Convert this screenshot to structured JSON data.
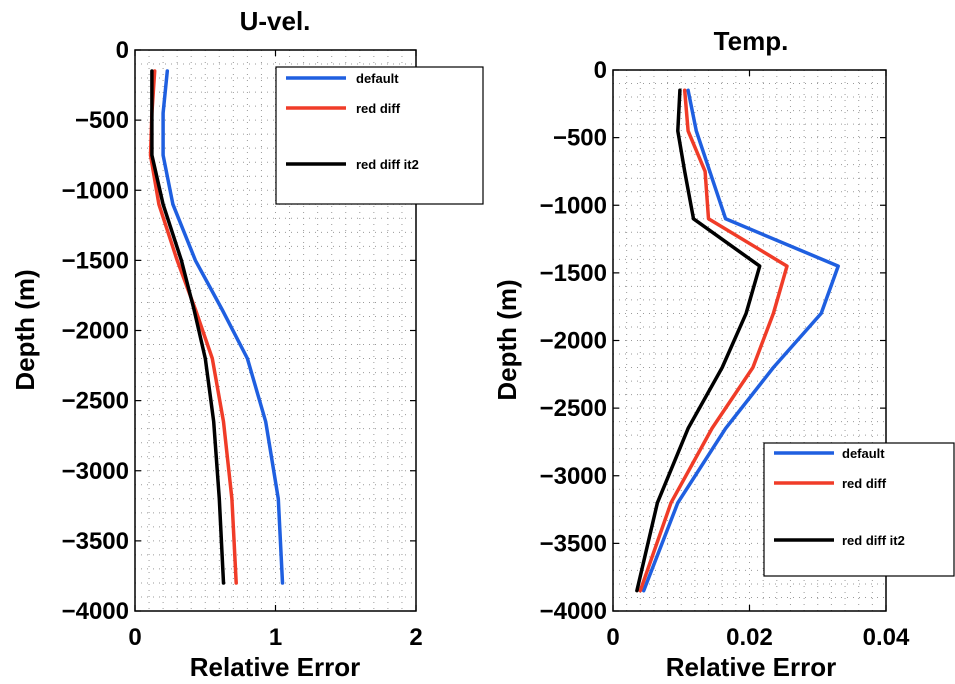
{
  "chart_data": [
    {
      "type": "line",
      "title": "U-vel.",
      "xlabel": "Relative Error",
      "ylabel": "Depth (m)",
      "xlim": [
        0,
        2
      ],
      "ylim": [
        -4000,
        0
      ],
      "xticks": [
        0,
        1,
        2
      ],
      "xtick_labels": [
        "0",
        "1",
        "2"
      ],
      "yticks": [
        0,
        -500,
        -1000,
        -1500,
        -2000,
        -2500,
        -3000,
        -3500,
        -4000
      ],
      "ytick_labels": [
        "0",
        "−500",
        "−1000",
        "−1500",
        "−2000",
        "−2500",
        "−3000",
        "−3500",
        "−4000"
      ],
      "grid": "dotted",
      "legend": "top-right",
      "series": [
        {
          "name": "default",
          "color": "#1f5fe0",
          "points": [
            [
              0.23,
              -150
            ],
            [
              0.2,
              -450
            ],
            [
              0.2,
              -750
            ],
            [
              0.27,
              -1100
            ],
            [
              0.43,
              -1500
            ],
            [
              0.62,
              -1850
            ],
            [
              0.8,
              -2200
            ],
            [
              0.93,
              -2650
            ],
            [
              1.02,
              -3200
            ],
            [
              1.05,
              -3800
            ]
          ]
        },
        {
          "name": "red diff",
          "color": "#f03c28",
          "points": [
            [
              0.14,
              -150
            ],
            [
              0.12,
              -450
            ],
            [
              0.11,
              -750
            ],
            [
              0.17,
              -1100
            ],
            [
              0.3,
              -1500
            ],
            [
              0.43,
              -1850
            ],
            [
              0.55,
              -2200
            ],
            [
              0.63,
              -2650
            ],
            [
              0.69,
              -3200
            ],
            [
              0.72,
              -3800
            ]
          ]
        },
        {
          "name": "red diff it2",
          "color": "#000000",
          "points": [
            [
              0.12,
              -150
            ],
            [
              0.12,
              -450
            ],
            [
              0.12,
              -750
            ],
            [
              0.2,
              -1100
            ],
            [
              0.33,
              -1500
            ],
            [
              0.42,
              -1850
            ],
            [
              0.5,
              -2200
            ],
            [
              0.56,
              -2650
            ],
            [
              0.6,
              -3200
            ],
            [
              0.63,
              -3800
            ]
          ]
        }
      ]
    },
    {
      "type": "line",
      "title": "Temp.",
      "xlabel": "Relative Error",
      "ylabel": "Depth (m)",
      "xlim": [
        0,
        0.04
      ],
      "ylim": [
        -4000,
        0
      ],
      "xticks": [
        0,
        0.02,
        0.04
      ],
      "xtick_labels": [
        "0",
        "0.02",
        "0.04"
      ],
      "yticks": [
        0,
        -500,
        -1000,
        -1500,
        -2000,
        -2500,
        -3000,
        -3500,
        -4000
      ],
      "ytick_labels": [
        "0",
        "−500",
        "−1000",
        "−1500",
        "−2000",
        "−2500",
        "−3000",
        "−3500",
        "−4000"
      ],
      "grid": "dotted",
      "legend": "bottom-right",
      "series": [
        {
          "name": "default",
          "color": "#1f5fe0",
          "points": [
            [
              0.011,
              -150
            ],
            [
              0.0122,
              -450
            ],
            [
              0.0165,
              -1100
            ],
            [
              0.033,
              -1450
            ],
            [
              0.0305,
              -1800
            ],
            [
              0.0235,
              -2200
            ],
            [
              0.0165,
              -2650
            ],
            [
              0.0095,
              -3200
            ],
            [
              0.0045,
              -3850
            ]
          ]
        },
        {
          "name": "red diff",
          "color": "#f03c28",
          "points": [
            [
              0.0105,
              -150
            ],
            [
              0.011,
              -450
            ],
            [
              0.0135,
              -750
            ],
            [
              0.014,
              -1100
            ],
            [
              0.0255,
              -1450
            ],
            [
              0.0235,
              -1800
            ],
            [
              0.0205,
              -2200
            ],
            [
              0.0145,
              -2650
            ],
            [
              0.0085,
              -3200
            ],
            [
              0.004,
              -3850
            ]
          ]
        },
        {
          "name": "red diff it2",
          "color": "#000000",
          "points": [
            [
              0.0098,
              -150
            ],
            [
              0.0095,
              -450
            ],
            [
              0.0105,
              -750
            ],
            [
              0.0118,
              -1100
            ],
            [
              0.0215,
              -1450
            ],
            [
              0.0195,
              -1800
            ],
            [
              0.016,
              -2200
            ],
            [
              0.011,
              -2650
            ],
            [
              0.0065,
              -3200
            ],
            [
              0.0035,
              -3850
            ]
          ]
        }
      ]
    }
  ]
}
